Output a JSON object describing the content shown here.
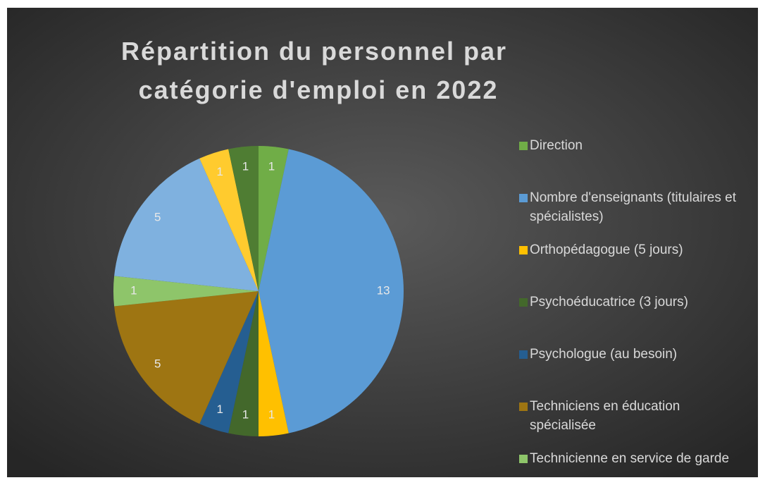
{
  "chart_data": {
    "type": "pie",
    "title": "Répartition du personnel par catégorie d'emploi en 2022",
    "categories": [
      "Direction",
      "Nombre d'enseignants (titulaires et spécialistes)",
      "Orthopédagogue (5 jours)",
      "Psychoéducatrice (3 jours)",
      "Psychologue (au besoin)",
      "Techniciens en éducation spécialisée",
      "Technicienne en service de garde",
      null,
      null,
      null
    ],
    "values": [
      1,
      13,
      1,
      1,
      1,
      5,
      1,
      5,
      1,
      1
    ],
    "colors": [
      "#70ad47",
      "#5b9bd5",
      "#ffc000",
      "#43682b",
      "#255e91",
      "#9e7512",
      "#8ec56a",
      "#7fb1df",
      "#ffcb2e",
      "#4f7d33"
    ],
    "legend": "right"
  }
}
